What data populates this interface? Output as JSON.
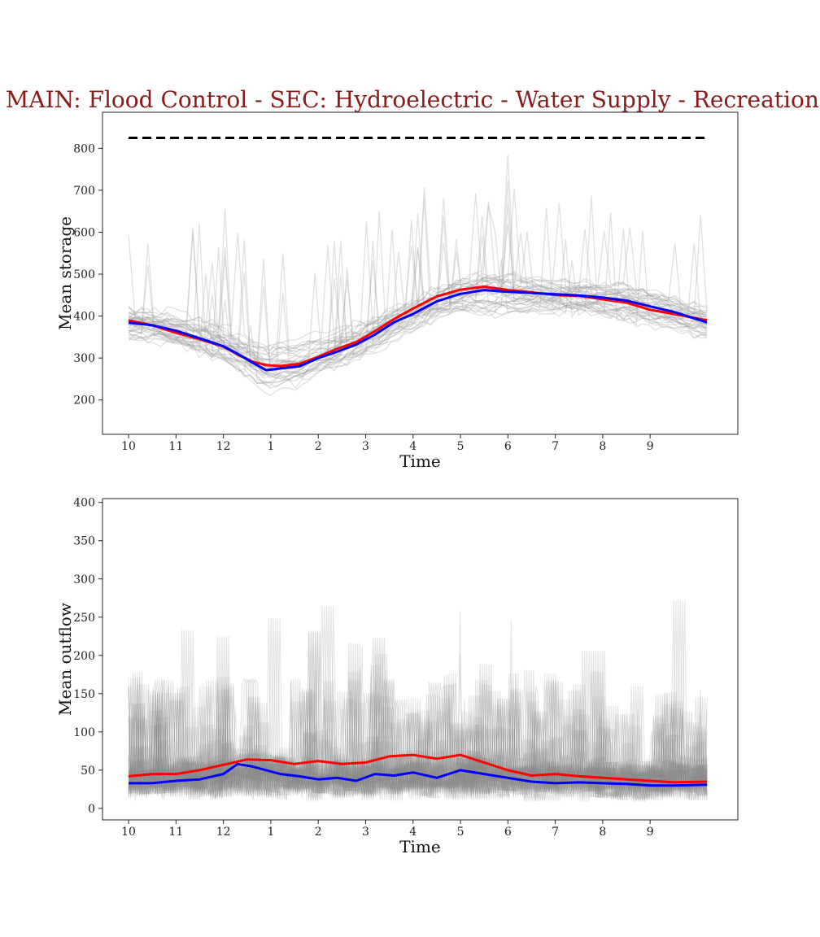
{
  "title": "MAIN: Flood Control - SEC: Hydroelectric - Water Supply - Recreation -",
  "colors": {
    "title": "#8b1a1a",
    "red": "#ff0000",
    "blue": "#0000ff",
    "background_series": "#999999",
    "reference": "#000000"
  },
  "chart_data": [
    {
      "type": "line",
      "ylabel": "Mean storage",
      "xlabel": "Time",
      "xlim": [
        -0.55,
        12.85
      ],
      "ylim": [
        118,
        886
      ],
      "x_tick_positions": [
        0,
        1,
        2,
        3,
        4,
        5,
        6,
        7,
        8,
        9,
        10,
        11
      ],
      "x_tick_labels": [
        "10",
        "11",
        "12",
        "1",
        "2",
        "3",
        "4",
        "5",
        "6",
        "7",
        "8",
        "9"
      ],
      "y_ticks": [
        200,
        300,
        400,
        500,
        600,
        700,
        800
      ],
      "reference_line": {
        "style": "dashed",
        "value": 825,
        "x_range": [
          0,
          12.2
        ]
      },
      "series": [
        {
          "color": "red",
          "x": [
            0,
            0.5,
            1,
            1.5,
            2,
            2.3,
            2.6,
            2.9,
            3.2,
            3.6,
            4,
            4.4,
            4.8,
            5.2,
            5.6,
            6,
            6.5,
            7,
            7.5,
            8,
            8.5,
            9,
            9.5,
            10,
            10.5,
            11,
            11.5,
            12.2
          ],
          "values": [
            390,
            378,
            360,
            345,
            327,
            308,
            292,
            283,
            281,
            286,
            303,
            322,
            338,
            364,
            393,
            418,
            447,
            463,
            470,
            462,
            457,
            450,
            448,
            440,
            432,
            415,
            405,
            390
          ]
        },
        {
          "color": "blue",
          "x": [
            0,
            0.5,
            1,
            1.5,
            2,
            2.3,
            2.6,
            2.9,
            3.2,
            3.6,
            4,
            4.4,
            4.8,
            5.2,
            5.6,
            6,
            6.5,
            7,
            7.5,
            8,
            8.5,
            9,
            9.5,
            10,
            10.5,
            11,
            11.5,
            12.2
          ],
          "values": [
            384,
            378,
            365,
            347,
            328,
            310,
            290,
            271,
            275,
            280,
            300,
            315,
            332,
            356,
            385,
            405,
            435,
            453,
            462,
            458,
            455,
            452,
            449,
            444,
            437,
            423,
            410,
            385
          ]
        }
      ]
    },
    {
      "type": "line",
      "ylabel": "Mean outflow",
      "xlabel": "Time",
      "xlim": [
        -0.55,
        12.85
      ],
      "ylim": [
        -15,
        405
      ],
      "x_tick_positions": [
        0,
        1,
        2,
        3,
        4,
        5,
        6,
        7,
        8,
        9,
        10,
        11
      ],
      "x_tick_labels": [
        "10",
        "11",
        "12",
        "1",
        "2",
        "3",
        "4",
        "5",
        "6",
        "7",
        "8",
        "9"
      ],
      "y_ticks": [
        0,
        50,
        100,
        150,
        200,
        250,
        300,
        350,
        400
      ],
      "series": [
        {
          "color": "red",
          "x": [
            0,
            0.5,
            1,
            1.5,
            2,
            2.5,
            3,
            3.5,
            4,
            4.5,
            5,
            5.5,
            6,
            6.5,
            7,
            7.5,
            8,
            8.5,
            9,
            9.5,
            10,
            10.5,
            11,
            11.5,
            12.2
          ],
          "values": [
            42,
            45,
            45,
            50,
            57,
            64,
            63,
            58,
            62,
            58,
            60,
            68,
            70,
            65,
            70,
            60,
            50,
            43,
            45,
            42,
            40,
            38,
            36,
            34,
            35
          ]
        },
        {
          "color": "blue",
          "x": [
            0,
            0.5,
            1,
            1.5,
            2,
            2.3,
            2.6,
            2.9,
            3.2,
            3.6,
            4,
            4.4,
            4.8,
            5.2,
            5.6,
            6,
            6.5,
            7,
            7.5,
            8,
            8.5,
            9,
            9.5,
            10,
            10.5,
            11,
            11.5,
            12.2
          ],
          "values": [
            33,
            33,
            36,
            38,
            45,
            58,
            55,
            50,
            45,
            42,
            38,
            40,
            36,
            45,
            43,
            47,
            40,
            50,
            45,
            40,
            35,
            33,
            34,
            33,
            32,
            30,
            30,
            31
          ]
        }
      ]
    }
  ]
}
